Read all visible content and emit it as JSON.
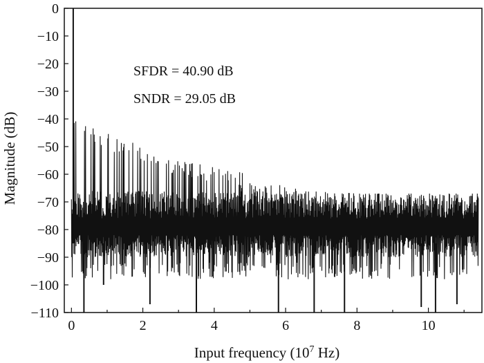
{
  "chart_data": {
    "type": "line",
    "title": "",
    "xlabel": "Input frequency (10",
    "xlabel_sup": "7",
    "xlabel_unit": " Hz)",
    "ylabel": "Magnitude (dB)",
    "xlim": [
      -0.2,
      11.5
    ],
    "ylim": [
      -110,
      0
    ],
    "xticks": [
      0,
      2,
      4,
      6,
      8,
      10
    ],
    "yticks": [
      0,
      -10,
      -20,
      -30,
      -40,
      -50,
      -60,
      -70,
      -80,
      -90,
      -100,
      -110
    ],
    "ytick_labels": [
      "0",
      "−10",
      "−20",
      "−30",
      "−40",
      "−50",
      "−60",
      "−70",
      "−80",
      "−90",
      "−100",
      "−110"
    ],
    "grid": false,
    "annotations": [
      "SFDR = 40.90 dB",
      "SNDR = 29.05 dB"
    ],
    "series": [
      {
        "color": "#111111",
        "signal_tone": {
          "x": 0.05,
          "y": 0
        },
        "spurs": [
          {
            "x": 0.35,
            "y": -110
          },
          {
            "x": 0.9,
            "y": -100
          },
          {
            "x": 2.2,
            "y": -107
          },
          {
            "x": 3.5,
            "y": -110
          },
          {
            "x": 5.8,
            "y": -110
          },
          {
            "x": 6.8,
            "y": -110
          },
          {
            "x": 7.65,
            "y": -110
          },
          {
            "x": 9.8,
            "y": -108
          },
          {
            "x": 10.2,
            "y": -110
          },
          {
            "x": 10.8,
            "y": -107
          }
        ],
        "upper_envelope": [
          {
            "x": 0.0,
            "y": -38
          },
          {
            "x": 0.5,
            "y": -42
          },
          {
            "x": 1.0,
            "y": -45
          },
          {
            "x": 2.0,
            "y": -50
          },
          {
            "x": 3.0,
            "y": -55
          },
          {
            "x": 4.0,
            "y": -57
          },
          {
            "x": 5.0,
            "y": -60
          },
          {
            "x": 6.0,
            "y": -64
          },
          {
            "x": 7.0,
            "y": -66
          },
          {
            "x": 8.0,
            "y": -67
          },
          {
            "x": 9.0,
            "y": -67
          },
          {
            "x": 10.0,
            "y": -67
          },
          {
            "x": 11.4,
            "y": -67
          }
        ],
        "band_low": -84,
        "band_high": -66,
        "lower_typical": -92
      }
    ]
  }
}
